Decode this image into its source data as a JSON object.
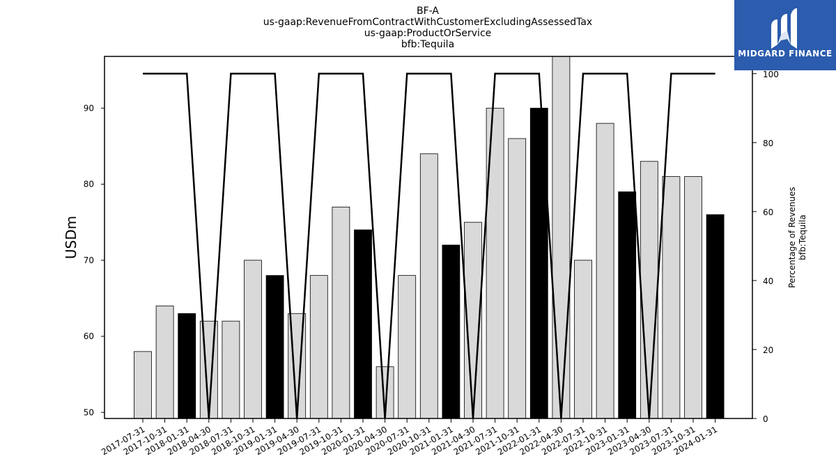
{
  "brand": {
    "name": "MIDGARD FINANCE",
    "color": "#2b5cad"
  },
  "chart_data": {
    "type": "bar",
    "title_lines": [
      "BF-A",
      "us-gaap:RevenueFromContractWithCustomerExcludingAssessedTax",
      "us-gaap:ProductOrService",
      "bfb:Tequila"
    ],
    "ylabel": "USDm",
    "y2label_lines": [
      "Percentage of Revenues",
      "bfb:Tequila"
    ],
    "ylim": [
      49.2,
      96.8
    ],
    "y_ticks": [
      50,
      60,
      70,
      80,
      90
    ],
    "y2lim": [
      0,
      105
    ],
    "y2_ticks": [
      0,
      20,
      40,
      60,
      80,
      100
    ],
    "categories": [
      "2017-07-31",
      "2017-10-31",
      "2018-01-31",
      "2018-04-30",
      "2018-07-31",
      "2018-10-31",
      "2019-01-31",
      "2019-04-30",
      "2019-07-31",
      "2019-10-31",
      "2020-01-31",
      "2020-04-30",
      "2020-07-31",
      "2020-10-31",
      "2021-01-31",
      "2021-04-30",
      "2021-07-31",
      "2021-10-31",
      "2022-01-31",
      "2022-04-30",
      "2022-07-31",
      "2022-10-31",
      "2023-01-31",
      "2023-04-30",
      "2023-07-31",
      "2023-10-31",
      "2024-01-31"
    ],
    "values": [
      58,
      64,
      63,
      62,
      62,
      70,
      68,
      63,
      68,
      77,
      74,
      56,
      68,
      84,
      72,
      75,
      90,
      86,
      90,
      97,
      70,
      88,
      79,
      83,
      81,
      81,
      76
    ],
    "highlighted": [
      false,
      false,
      true,
      false,
      false,
      false,
      true,
      false,
      false,
      false,
      true,
      false,
      false,
      false,
      true,
      false,
      false,
      false,
      true,
      false,
      false,
      false,
      true,
      false,
      false,
      false,
      true
    ],
    "bar_color": "#d9d9d9",
    "highlight_color": "#000000",
    "line": {
      "values": [
        100,
        100,
        100,
        0,
        100,
        100,
        100,
        0,
        100,
        100,
        100,
        0,
        100,
        100,
        100,
        0,
        100,
        100,
        100,
        0,
        100,
        100,
        100,
        0,
        100,
        100,
        100
      ],
      "color": "#000000"
    },
    "grid": false
  }
}
